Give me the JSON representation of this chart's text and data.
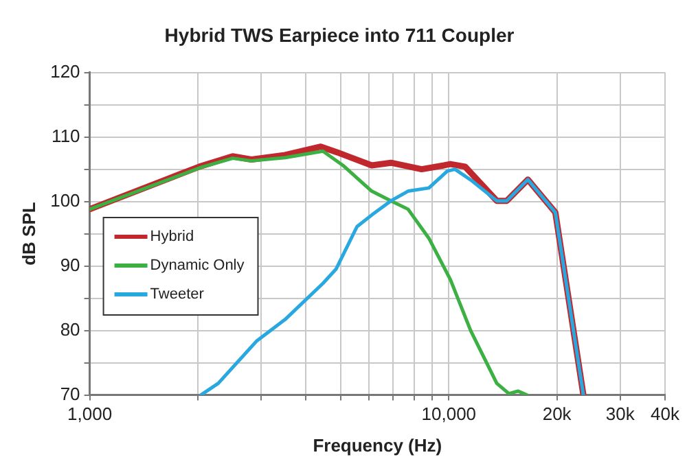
{
  "chart_data": {
    "type": "line",
    "title": "Hybrid TWS Earpiece into 711 Coupler",
    "xlabel": "Frequency (Hz)",
    "ylabel": "dB SPL",
    "log": "x",
    "xlim": [
      1000,
      40000
    ],
    "xticks": [
      {
        "value": 1000,
        "label": "1,000"
      },
      {
        "value": 2000,
        "label": null
      },
      {
        "value": 3000,
        "label": null
      },
      {
        "value": 4000,
        "label": null
      },
      {
        "value": 5000,
        "label": null
      },
      {
        "value": 6000,
        "label": null
      },
      {
        "value": 7000,
        "label": null
      },
      {
        "value": 8000,
        "label": null
      },
      {
        "value": 9000,
        "label": null
      },
      {
        "value": 10000,
        "label": "10,000"
      },
      {
        "value": 20000,
        "label": "20k"
      },
      {
        "value": 30000,
        "label": "30k"
      },
      {
        "value": 40000,
        "label": "40k"
      }
    ],
    "ylim": [
      70,
      120
    ],
    "yticks": [
      70,
      {
        "value": 75,
        "label": null
      },
      80,
      {
        "value": 85,
        "label": null
      },
      90,
      {
        "value": 95,
        "label": null
      },
      100,
      {
        "value": 105,
        "label": null
      },
      110,
      {
        "value": 115,
        "label": null
      },
      120
    ],
    "grid": true,
    "legend": "left",
    "marker": "none",
    "line_style": "solid",
    "series": [
      {
        "name": "Hybrid",
        "color": "#c0282d",
        "x": [
          1000,
          2020,
          2500,
          2820,
          3500,
          4400,
          4900,
          6100,
          6900,
          8400,
          9700,
          10100,
          11100,
          13600,
          14500,
          16600,
          19800,
          23700
        ],
        "values": [
          98.8,
          105.4,
          107,
          106.5,
          107.2,
          108.5,
          107.6,
          105.6,
          106,
          105,
          105.6,
          105.8,
          105.4,
          100.1,
          100.1,
          103.4,
          98.3,
          70
        ]
      },
      {
        "name": "Dynamic Only",
        "color": "#3cb043",
        "x": [
          1000,
          2020,
          2500,
          2820,
          3500,
          4460,
          5070,
          6100,
          6900,
          7700,
          8800,
          10100,
          11500,
          13600,
          14700,
          15600,
          16500
        ],
        "values": [
          98.8,
          105.2,
          106.7,
          106.3,
          106.8,
          107.8,
          105.6,
          101.6,
          100.1,
          98.8,
          94.3,
          87.9,
          80,
          71.8,
          70.2,
          70.6,
          70
        ]
      },
      {
        "name": "Tweeter",
        "color": "#29a8e0",
        "x": [
          2040,
          2280,
          2920,
          3500,
          4460,
          4850,
          5550,
          6100,
          6900,
          7700,
          8800,
          9900,
          10400,
          11600,
          13600,
          14500,
          16600,
          19800,
          23700
        ],
        "values": [
          70,
          71.8,
          78.4,
          81.7,
          87.3,
          89.5,
          96.1,
          97.9,
          100.1,
          101.6,
          102.1,
          104.7,
          105,
          103.2,
          100.1,
          100.1,
          103.4,
          98.3,
          70
        ]
      }
    ]
  }
}
